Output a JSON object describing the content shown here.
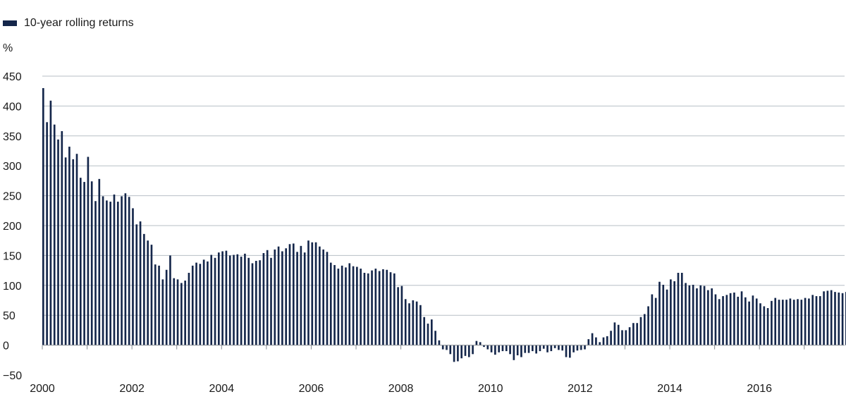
{
  "legend": {
    "label": "10-year rolling returns",
    "color": "#14264a"
  },
  "y_unit": "%",
  "colors": {
    "bar": "#14264a",
    "grid": "#b7bfc6",
    "axis": "#8a8f94"
  },
  "chart_data": {
    "type": "bar",
    "title": "",
    "xlabel": "",
    "ylabel": "%",
    "ylim": [
      -50,
      450
    ],
    "yticks": [
      -50,
      0,
      50,
      100,
      150,
      200,
      250,
      300,
      350,
      400,
      450
    ],
    "xlim": [
      2000.0,
      2017.9
    ],
    "xticks": [
      2000,
      2002,
      2004,
      2006,
      2008,
      2010,
      2012,
      2014,
      2016
    ],
    "grid": true,
    "legend_position": "top-left",
    "series": [
      {
        "name": "10-year rolling returns",
        "start": "2000-01",
        "frequency": "monthly",
        "values": [
          430,
          373,
          409,
          369,
          344,
          358,
          314,
          332,
          311,
          320,
          280,
          273,
          315,
          274,
          241,
          278,
          249,
          242,
          240,
          252,
          240,
          249,
          254,
          248,
          229,
          202,
          207,
          186,
          175,
          168,
          135,
          133,
          110,
          126,
          150,
          112,
          110,
          104,
          108,
          121,
          133,
          138,
          136,
          143,
          140,
          151,
          146,
          155,
          157,
          158,
          150,
          151,
          152,
          148,
          153,
          146,
          137,
          141,
          142,
          154,
          159,
          146,
          160,
          165,
          157,
          162,
          169,
          170,
          156,
          166,
          155,
          175,
          172,
          172,
          165,
          160,
          156,
          138,
          134,
          128,
          133,
          130,
          137,
          132,
          131,
          128,
          121,
          120,
          125,
          128,
          124,
          127,
          126,
          122,
          120,
          97,
          99,
          77,
          70,
          75,
          73,
          67,
          47,
          36,
          43,
          24,
          8,
          -7,
          -8,
          -15,
          -28,
          -27,
          -22,
          -18,
          -20,
          -15,
          7,
          5,
          -3,
          -7,
          -12,
          -16,
          -12,
          -10,
          -10,
          -15,
          -25,
          -17,
          -20,
          -13,
          -13,
          -10,
          -14,
          -10,
          -6,
          -12,
          -10,
          -5,
          -8,
          -9,
          -20,
          -21,
          -12,
          -9,
          -8,
          -7,
          10,
          20,
          13,
          5,
          13,
          15,
          24,
          38,
          34,
          25,
          25,
          30,
          37,
          37,
          47,
          52,
          65,
          85,
          79,
          106,
          101,
          93,
          110,
          107,
          121,
          121,
          104,
          100,
          101,
          95,
          100,
          99,
          92,
          95,
          85,
          77,
          82,
          84,
          87,
          88,
          81,
          90,
          80,
          73,
          83,
          78,
          70,
          65,
          62,
          74,
          79,
          76,
          76,
          76,
          78,
          76,
          77,
          76,
          79,
          78,
          84,
          82,
          82,
          90,
          91,
          92,
          89,
          88,
          87,
          89
        ]
      }
    ]
  }
}
